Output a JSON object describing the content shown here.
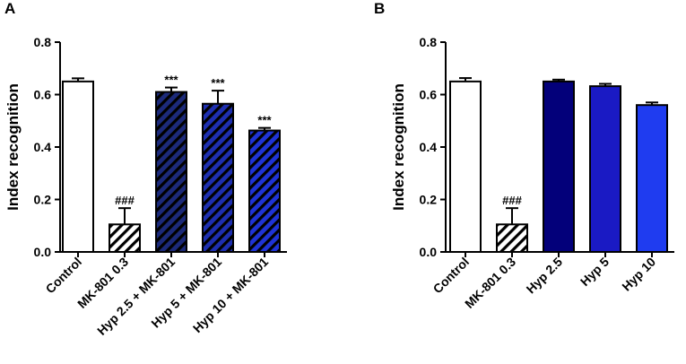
{
  "chart_data": [
    {
      "panel": "A",
      "type": "bar",
      "ylabel": "Index recognition",
      "ylim": [
        0,
        0.8
      ],
      "yticks": [
        "0.0",
        "0.2",
        "0.4",
        "0.6",
        "0.8"
      ],
      "categories": [
        "Control",
        "MK-801 0.3",
        "Hyp 2.5 + MK-801",
        "Hyp 5 + MK-801",
        "Hyp 10 + MK-801"
      ],
      "values": [
        0.65,
        0.105,
        0.61,
        0.565,
        0.463
      ],
      "errors": [
        0.012,
        0.062,
        0.017,
        0.05,
        0.01
      ],
      "annotations": [
        "",
        "###",
        "***",
        "***",
        "***"
      ],
      "fills": [
        "#ffffff",
        "hatch:#ffffff",
        "hatch:#1c2a7a",
        "hatch:#1e2fb0",
        "hatch:#1f34d6"
      ]
    },
    {
      "panel": "B",
      "type": "bar",
      "ylabel": "Index recognition",
      "ylim": [
        0,
        0.8
      ],
      "yticks": [
        "0.0",
        "0.2",
        "0.4",
        "0.6",
        "0.8"
      ],
      "categories": [
        "Control",
        "MK-801 0.3",
        "Hyp 2.5",
        "Hyp 5",
        "Hyp 10"
      ],
      "values": [
        0.65,
        0.105,
        0.65,
        0.632,
        0.56
      ],
      "errors": [
        0.013,
        0.062,
        0.007,
        0.009,
        0.01
      ],
      "annotations": [
        "",
        "###",
        "",
        "",
        ""
      ],
      "fills": [
        "#ffffff",
        "hatch:#ffffff",
        "#03007a",
        "#1a1ac4",
        "#1f3cf0"
      ]
    }
  ]
}
